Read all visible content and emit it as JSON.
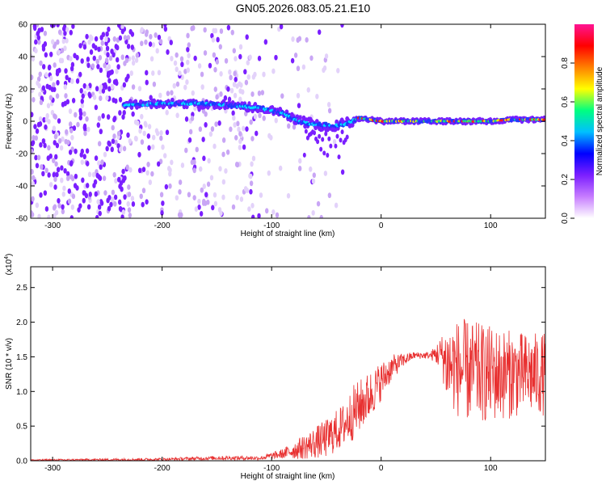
{
  "title": "GN05.2026.083.05.21.E10",
  "chart_data": [
    {
      "type": "heatmap",
      "xlabel": "Height of straight line (km)",
      "ylabel": "Frequency (Hz)",
      "xlim": [
        -320,
        150
      ],
      "ylim": [
        -60,
        60
      ],
      "x_ticks": [
        -300,
        -200,
        -100,
        0,
        100
      ],
      "y_ticks": [
        -60,
        -40,
        -20,
        0,
        20,
        40,
        60
      ],
      "colorbar": {
        "label": "Normalized spectral amplitude",
        "range": [
          0,
          1
        ],
        "ticks": [
          "0.0",
          "0.2",
          "0.4",
          "0.6",
          "0.8"
        ],
        "colors": [
          "#ffffff",
          "#c77dff",
          "#7b1fff",
          "#0000ff",
          "#00bfff",
          "#00ff80",
          "#ffff00",
          "#ff8000",
          "#ff0000",
          "#ff1493"
        ]
      },
      "signal_track": {
        "x": [
          -235,
          -200,
          -170,
          -140,
          -110,
          -90,
          -75,
          -60,
          -45,
          -30,
          -20,
          -10,
          0,
          20,
          40,
          60,
          80,
          100,
          120,
          150
        ],
        "frequency": [
          10,
          11,
          11,
          10,
          8,
          5,
          0,
          -2,
          -3,
          -1,
          2,
          1,
          0,
          0,
          0,
          0,
          0,
          0,
          1,
          1
        ]
      },
      "noise_region_x": [
        -320,
        -115
      ]
    },
    {
      "type": "line",
      "xlabel": "Height of straight line (km)",
      "ylabel": "SNR (10 * v/v)",
      "y_multiplier": "(x10",
      "y_multiplier_exp": "4",
      "xlim": [
        -320,
        150
      ],
      "ylim": [
        0,
        2.8
      ],
      "x_ticks": [
        -300,
        -200,
        -100,
        0,
        100
      ],
      "y_ticks": [
        0.0,
        0.5,
        1.0,
        1.5,
        2.0,
        2.5
      ],
      "color": "#e83030",
      "envelope": {
        "x": [
          -320,
          -200,
          -150,
          -110,
          -90,
          -70,
          -50,
          -35,
          -25,
          -10,
          0,
          10,
          20,
          30,
          45,
          55,
          60,
          75,
          100,
          130,
          150
        ],
        "mean": [
          0.01,
          0.02,
          0.04,
          0.04,
          0.1,
          0.2,
          0.32,
          0.5,
          0.7,
          0.95,
          1.15,
          1.35,
          1.45,
          1.52,
          1.52,
          1.55,
          1.4,
          1.3,
          1.25,
          1.25,
          1.25
        ],
        "amplitude": [
          0.01,
          0.02,
          0.03,
          0.03,
          0.07,
          0.18,
          0.28,
          0.32,
          0.4,
          0.35,
          0.28,
          0.18,
          0.1,
          0.05,
          0.05,
          0.25,
          0.6,
          0.75,
          0.7,
          0.6,
          0.6
        ]
      }
    }
  ]
}
